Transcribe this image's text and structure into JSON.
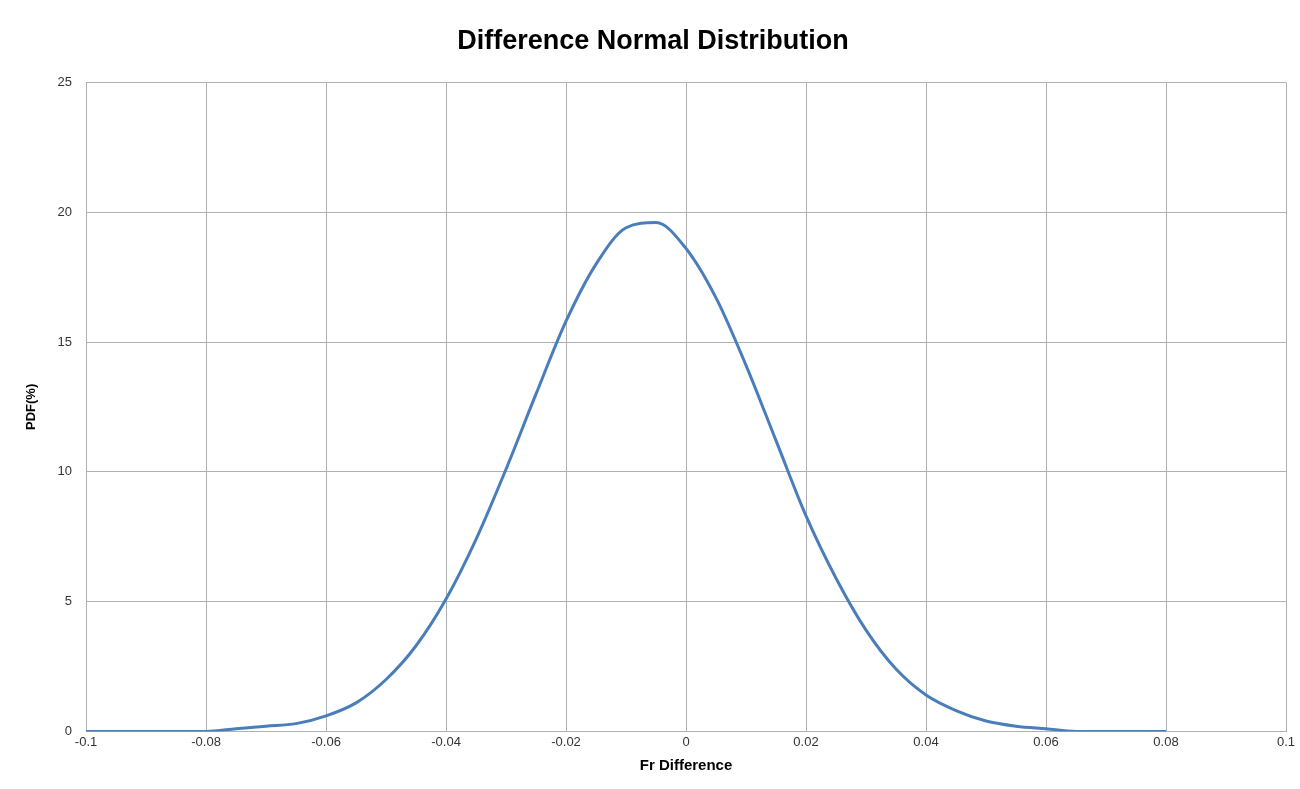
{
  "chart_data": {
    "type": "line",
    "title": "Difference Normal Distribution",
    "xlabel": "Fr Difference",
    "ylabel": "PDF(%)",
    "x": [
      -0.1,
      -0.095,
      -0.09,
      -0.085,
      -0.08,
      -0.075,
      -0.07,
      -0.065,
      -0.06,
      -0.055,
      -0.05,
      -0.045,
      -0.04,
      -0.035,
      -0.03,
      -0.025,
      -0.02,
      -0.015,
      -0.01,
      -0.005,
      0,
      0.005,
      0.01,
      0.015,
      0.02,
      0.025,
      0.03,
      0.035,
      0.04,
      0.045,
      0.05,
      0.055,
      0.06,
      0.065,
      0.07,
      0.075,
      0.08
    ],
    "series": [
      {
        "color": "#4a7ebb",
        "values": [
          0,
          0,
          0,
          0,
          0,
          0.1,
          0.2,
          0.3,
          0.6,
          1.1,
          2,
          3.3,
          5.1,
          7.4,
          10.1,
          13,
          15.8,
          18,
          19.4,
          19.6,
          18.6,
          16.7,
          14.1,
          11.2,
          8.3,
          5.9,
          3.9,
          2.4,
          1.4,
          0.8,
          0.4,
          0.2,
          0.1,
          0,
          0,
          0,
          0
        ]
      }
    ],
    "xlim": [
      -0.1,
      0.1
    ],
    "xticks": [
      -0.1,
      -0.08,
      -0.06,
      -0.04,
      -0.02,
      0,
      0.02,
      0.04,
      0.06,
      0.08,
      0.1
    ],
    "ylim": [
      0,
      25
    ],
    "yticks": [
      0,
      5,
      10,
      15,
      20,
      25
    ],
    "grid": true,
    "marker": "none",
    "line_style": "solid",
    "legend": false
  }
}
